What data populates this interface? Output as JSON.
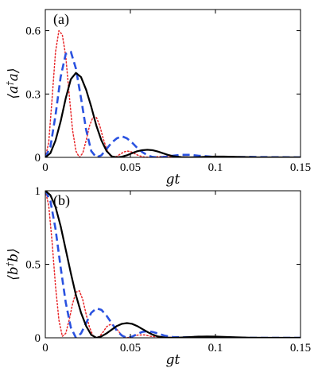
{
  "chart_data": [
    {
      "type": "line",
      "panel_label": "(a)",
      "xlabel": "gt",
      "ylabel_html": "⟨a<tspan baseline-shift='super' font-size='11'>†</tspan>a⟩",
      "xlim": [
        0,
        0.15
      ],
      "ylim": [
        0,
        0.7
      ],
      "xticks": [
        0,
        0.05,
        0.1,
        0.15
      ],
      "xtick_labels": [
        "0",
        "0.05",
        "0.1",
        "0.15"
      ],
      "yticks": [
        0,
        0.3,
        0.6
      ],
      "ytick_labels": [
        "0",
        "0.3",
        "0.6"
      ],
      "grid": false,
      "series": [
        {
          "style": "solid",
          "color": "#000000",
          "x": [
            0,
            0.003,
            0.006,
            0.009,
            0.012,
            0.015,
            0.018,
            0.021,
            0.024,
            0.027,
            0.03,
            0.033,
            0.036,
            0.039,
            0.042,
            0.045,
            0.048,
            0.051,
            0.054,
            0.057,
            0.06,
            0.063,
            0.066,
            0.069,
            0.072,
            0.075,
            0.08,
            0.085,
            0.09,
            0.095,
            0.1,
            0.105,
            0.11,
            0.115,
            0.12,
            0.125,
            0.13,
            0.14,
            0.15
          ],
          "y": [
            0,
            0.02,
            0.08,
            0.17,
            0.28,
            0.37,
            0.4,
            0.38,
            0.32,
            0.24,
            0.15,
            0.08,
            0.03,
            0.005,
            0.0,
            0.003,
            0.01,
            0.02,
            0.029,
            0.034,
            0.036,
            0.034,
            0.028,
            0.02,
            0.012,
            0.006,
            0.001,
            0.0,
            0.001,
            0.003,
            0.004,
            0.004,
            0.003,
            0.002,
            0.001,
            0.0,
            0.0,
            0.0,
            0.0
          ]
        },
        {
          "style": "dashed",
          "color": "#2a52e0",
          "x": [
            0,
            0.003,
            0.006,
            0.009,
            0.012,
            0.015,
            0.018,
            0.021,
            0.024,
            0.027,
            0.03,
            0.033,
            0.036,
            0.039,
            0.042,
            0.045,
            0.048,
            0.051,
            0.054,
            0.057,
            0.06,
            0.063,
            0.066,
            0.07,
            0.075,
            0.08,
            0.085,
            0.09,
            0.1,
            0.11,
            0.12,
            0.13,
            0.15
          ],
          "y": [
            0,
            0.05,
            0.2,
            0.38,
            0.49,
            0.5,
            0.42,
            0.28,
            0.13,
            0.03,
            0.0,
            0.01,
            0.04,
            0.07,
            0.09,
            0.1,
            0.09,
            0.07,
            0.045,
            0.025,
            0.01,
            0.002,
            0.0,
            0.002,
            0.008,
            0.012,
            0.012,
            0.008,
            0.002,
            0.001,
            0.002,
            0.001,
            0.0
          ]
        },
        {
          "style": "dotted",
          "color": "#e8272a",
          "x": [
            0,
            0.002,
            0.004,
            0.006,
            0.008,
            0.01,
            0.012,
            0.014,
            0.016,
            0.018,
            0.02,
            0.022,
            0.024,
            0.026,
            0.028,
            0.03,
            0.032,
            0.034,
            0.036,
            0.038,
            0.04,
            0.042,
            0.044,
            0.046,
            0.048,
            0.05,
            0.052,
            0.055,
            0.058,
            0.062,
            0.066,
            0.07,
            0.08,
            0.09,
            0.1,
            0.15
          ],
          "y": [
            0,
            0.07,
            0.28,
            0.5,
            0.6,
            0.58,
            0.48,
            0.3,
            0.13,
            0.03,
            0.0,
            0.02,
            0.08,
            0.15,
            0.19,
            0.19,
            0.15,
            0.09,
            0.04,
            0.01,
            0.0,
            0.005,
            0.015,
            0.025,
            0.03,
            0.028,
            0.02,
            0.008,
            0.002,
            0.0,
            0.003,
            0.005,
            0.002,
            0.0,
            0.001,
            0.0
          ]
        }
      ]
    },
    {
      "type": "line",
      "panel_label": "(b)",
      "xlabel": "gt",
      "ylabel_html": "⟨b<tspan baseline-shift='super' font-size='11'>†</tspan>b⟩",
      "xlim": [
        0,
        0.15
      ],
      "ylim": [
        0,
        1
      ],
      "xticks": [
        0,
        0.05,
        0.1,
        0.15
      ],
      "xtick_labels": [
        "0",
        "0.05",
        "0.1",
        "0.15"
      ],
      "yticks": [
        0,
        0.5,
        1
      ],
      "ytick_labels": [
        "0",
        "0.5",
        "1"
      ],
      "grid": false,
      "series": [
        {
          "style": "solid",
          "color": "#000000",
          "x": [
            0,
            0.003,
            0.006,
            0.009,
            0.012,
            0.015,
            0.018,
            0.021,
            0.024,
            0.027,
            0.03,
            0.033,
            0.036,
            0.039,
            0.042,
            0.045,
            0.048,
            0.051,
            0.054,
            0.057,
            0.06,
            0.063,
            0.066,
            0.07,
            0.075,
            0.08,
            0.085,
            0.09,
            0.095,
            0.1,
            0.105,
            0.11,
            0.12,
            0.13,
            0.15
          ],
          "y": [
            1.0,
            0.97,
            0.89,
            0.76,
            0.6,
            0.44,
            0.29,
            0.17,
            0.08,
            0.02,
            0.0,
            0.01,
            0.03,
            0.055,
            0.08,
            0.095,
            0.1,
            0.095,
            0.08,
            0.06,
            0.04,
            0.022,
            0.01,
            0.002,
            0.0,
            0.002,
            0.005,
            0.008,
            0.009,
            0.008,
            0.006,
            0.004,
            0.001,
            0.0,
            0.0
          ]
        },
        {
          "style": "dashed",
          "color": "#2a52e0",
          "x": [
            0,
            0.003,
            0.006,
            0.009,
            0.012,
            0.015,
            0.018,
            0.021,
            0.024,
            0.027,
            0.03,
            0.033,
            0.036,
            0.039,
            0.042,
            0.045,
            0.048,
            0.051,
            0.054,
            0.057,
            0.06,
            0.063,
            0.066,
            0.07,
            0.075,
            0.08,
            0.09,
            0.1,
            0.11,
            0.12,
            0.15
          ],
          "y": [
            1.0,
            0.93,
            0.74,
            0.48,
            0.24,
            0.07,
            0.0,
            0.03,
            0.1,
            0.17,
            0.2,
            0.19,
            0.15,
            0.1,
            0.05,
            0.015,
            0.0,
            0.008,
            0.025,
            0.04,
            0.045,
            0.04,
            0.03,
            0.015,
            0.005,
            0.003,
            0.006,
            0.004,
            0.002,
            0.0,
            0.0
          ]
        },
        {
          "style": "dotted",
          "color": "#e8272a",
          "x": [
            0,
            0.002,
            0.004,
            0.006,
            0.008,
            0.01,
            0.012,
            0.014,
            0.016,
            0.018,
            0.02,
            0.022,
            0.024,
            0.026,
            0.028,
            0.03,
            0.032,
            0.034,
            0.036,
            0.038,
            0.04,
            0.042,
            0.044,
            0.046,
            0.048,
            0.05,
            0.054,
            0.058,
            0.062,
            0.07,
            0.08,
            0.09,
            0.1,
            0.15
          ],
          "y": [
            1.0,
            0.9,
            0.65,
            0.35,
            0.12,
            0.01,
            0.03,
            0.12,
            0.23,
            0.31,
            0.32,
            0.26,
            0.16,
            0.07,
            0.015,
            0.0,
            0.01,
            0.04,
            0.075,
            0.09,
            0.085,
            0.06,
            0.03,
            0.01,
            0.0,
            0.005,
            0.018,
            0.02,
            0.01,
            0.004,
            0.001,
            0.003,
            0.002,
            0.0
          ]
        }
      ]
    }
  ]
}
